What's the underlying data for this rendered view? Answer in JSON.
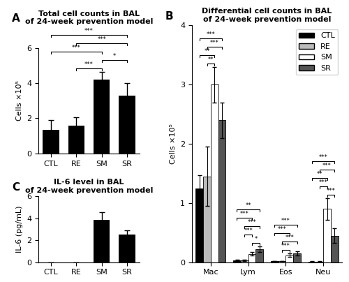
{
  "chart_data": [
    {
      "type": "bar",
      "panel": "A",
      "title": "Total cell counts in BAL\nof 24-week prevention model",
      "ylabel": "Cells ×10⁵",
      "categories": [
        "CTL",
        "RE",
        "SM",
        "SR"
      ],
      "values": [
        1.35,
        1.6,
        4.2,
        3.3
      ],
      "errors": [
        0.55,
        0.45,
        0.45,
        0.7
      ],
      "color": "#000000",
      "ylim": [
        0,
        6
      ],
      "yticks": [
        0,
        2,
        4,
        6
      ],
      "annotations": [
        {
          "from": "CTL",
          "to": "SM",
          "text": "***"
        },
        {
          "from": "CTL",
          "to": "SR",
          "text": "***"
        },
        {
          "from": "RE",
          "to": "SM",
          "text": "***"
        },
        {
          "from": "RE",
          "to": "SR",
          "text": "***"
        },
        {
          "from": "SM",
          "to": "SR",
          "text": "*"
        }
      ]
    },
    {
      "type": "bar",
      "panel": "B",
      "title": "Differential cell counts in BAL\nof 24-week prevention model",
      "ylabel": "Cells ×10⁵",
      "categories": [
        "Mac",
        "Lym",
        "Eos",
        "Neu"
      ],
      "series": [
        {
          "name": "CTL",
          "color": "#000000",
          "values": [
            1.25,
            0.03,
            0.02,
            0.01
          ],
          "errors": [
            0.22,
            0.01,
            0.005,
            0.005
          ]
        },
        {
          "name": "RE",
          "color": "#bbbbbb",
          "values": [
            1.45,
            0.03,
            0.02,
            0.01
          ],
          "errors": [
            0.5,
            0.01,
            0.005,
            0.005
          ]
        },
        {
          "name": "SM",
          "color": "#ffffff",
          "values": [
            3.0,
            0.14,
            0.12,
            0.9
          ],
          "errors": [
            0.3,
            0.03,
            0.025,
            0.18
          ]
        },
        {
          "name": "SR",
          "color": "#555555",
          "values": [
            2.4,
            0.22,
            0.15,
            0.45
          ],
          "errors": [
            0.3,
            0.05,
            0.035,
            0.12
          ]
        }
      ],
      "ylim": [
        0,
        4
      ],
      "yticks": [
        0,
        1,
        2,
        3,
        4
      ],
      "legend": "upper right",
      "annotations": [
        {
          "category": "Mac",
          "from": "CTL",
          "to": "SM",
          "text": "**"
        },
        {
          "category": "Mac",
          "from": "CTL",
          "to": "SR",
          "text": "***"
        },
        {
          "category": "Mac",
          "from": "RE",
          "to": "SM",
          "text": "**"
        },
        {
          "category": "Mac",
          "from": "RE",
          "to": "SR",
          "text": "***"
        },
        {
          "category": "Lym",
          "from": "CTL",
          "to": "SM",
          "text": "***"
        },
        {
          "category": "Lym",
          "from": "CTL",
          "to": "SR",
          "text": "**"
        },
        {
          "category": "Lym",
          "from": "RE",
          "to": "SM",
          "text": "***"
        },
        {
          "category": "Lym",
          "from": "RE",
          "to": "SR",
          "text": "***"
        },
        {
          "category": "Lym",
          "from": "SM",
          "to": "SR",
          "text": "*"
        },
        {
          "category": "Eos",
          "from": "CTL",
          "to": "SM",
          "text": "***"
        },
        {
          "category": "Eos",
          "from": "CTL",
          "to": "SR",
          "text": "***"
        },
        {
          "category": "Eos",
          "from": "RE",
          "to": "SM",
          "text": "***"
        },
        {
          "category": "Eos",
          "from": "RE",
          "to": "SR",
          "text": "***"
        },
        {
          "category": "Neu",
          "from": "CTL",
          "to": "SM",
          "text": "**"
        },
        {
          "category": "Neu",
          "from": "CTL",
          "to": "SR",
          "text": "***"
        },
        {
          "category": "Neu",
          "from": "RE",
          "to": "SM",
          "text": "***"
        },
        {
          "category": "Neu",
          "from": "RE",
          "to": "SR",
          "text": "***"
        },
        {
          "category": "Neu",
          "from": "SM",
          "to": "SR",
          "text": "***"
        }
      ]
    },
    {
      "type": "bar",
      "panel": "C",
      "title": "IL-6 level in BAL\nof 24-week prevention model",
      "ylabel": "IL-6 (pg/mL)",
      "categories": [
        "CTL",
        "RE",
        "SM",
        "SR"
      ],
      "values": [
        0,
        0,
        3.85,
        2.55
      ],
      "errors": [
        0,
        0,
        0.7,
        0.35
      ],
      "color": "#000000",
      "ylim": [
        0,
        6
      ],
      "yticks": [
        0,
        2,
        4,
        6
      ]
    }
  ]
}
